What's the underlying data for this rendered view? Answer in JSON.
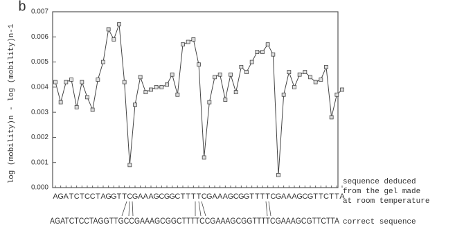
{
  "chart_data": {
    "type": "line",
    "panel_label": "b",
    "y_label": "log (mobility)n - log (mobility)n-1",
    "categories": [
      "A",
      "G",
      "A",
      "T",
      "C",
      "T",
      "C",
      "C",
      "T",
      "A",
      "G",
      "G",
      "T",
      "T",
      "C",
      "G",
      "A",
      "A",
      "A",
      "G",
      "C",
      "G",
      "G",
      "C",
      "T",
      "T",
      "T",
      "T",
      "C",
      "G",
      "A",
      "A",
      "A",
      "G",
      "C",
      "G",
      "G",
      "T",
      "T",
      "T",
      "T",
      "C",
      "G",
      "A",
      "A",
      "A",
      "G",
      "C",
      "G",
      "T",
      "T",
      "C",
      "T",
      "T",
      "A"
    ],
    "values": [
      0.0042,
      0.0034,
      0.0042,
      0.0043,
      0.0032,
      0.0042,
      0.0036,
      0.0031,
      0.0043,
      0.005,
      0.0063,
      0.0059,
      0.0065,
      0.0042,
      0.0009,
      0.0033,
      0.0044,
      0.0038,
      0.0039,
      0.004,
      0.004,
      0.0041,
      0.0045,
      0.0037,
      0.0057,
      0.0058,
      0.0059,
      0.0049,
      0.0012,
      0.0034,
      0.0044,
      0.0045,
      0.0035,
      0.0045,
      0.0038,
      0.0048,
      0.0046,
      0.005,
      0.0054,
      0.0054,
      0.0057,
      0.0053,
      0.0005,
      0.0037,
      0.0046,
      0.004,
      0.0045,
      0.0046,
      0.0044,
      0.0042,
      0.0043,
      0.0048,
      0.0028,
      0.0037,
      0.0039
    ],
    "color": "#444444",
    "ylim": [
      0,
      0.007
    ],
    "yticks": [
      {
        "value": 0,
        "label": "0.000"
      },
      0.001,
      0.002,
      0.003,
      0.004,
      0.005,
      0.006,
      0.007
    ],
    "correct_sequence": "AGATCTCCTAGGTTGCCGAAAGCGGCTTTTCCGAAAGCGGTTTTCGAAAGCGTTCTTA",
    "annotations": [
      "sequence deduced",
      "from the gel made",
      "at room temperature",
      "correct sequence"
    ]
  }
}
